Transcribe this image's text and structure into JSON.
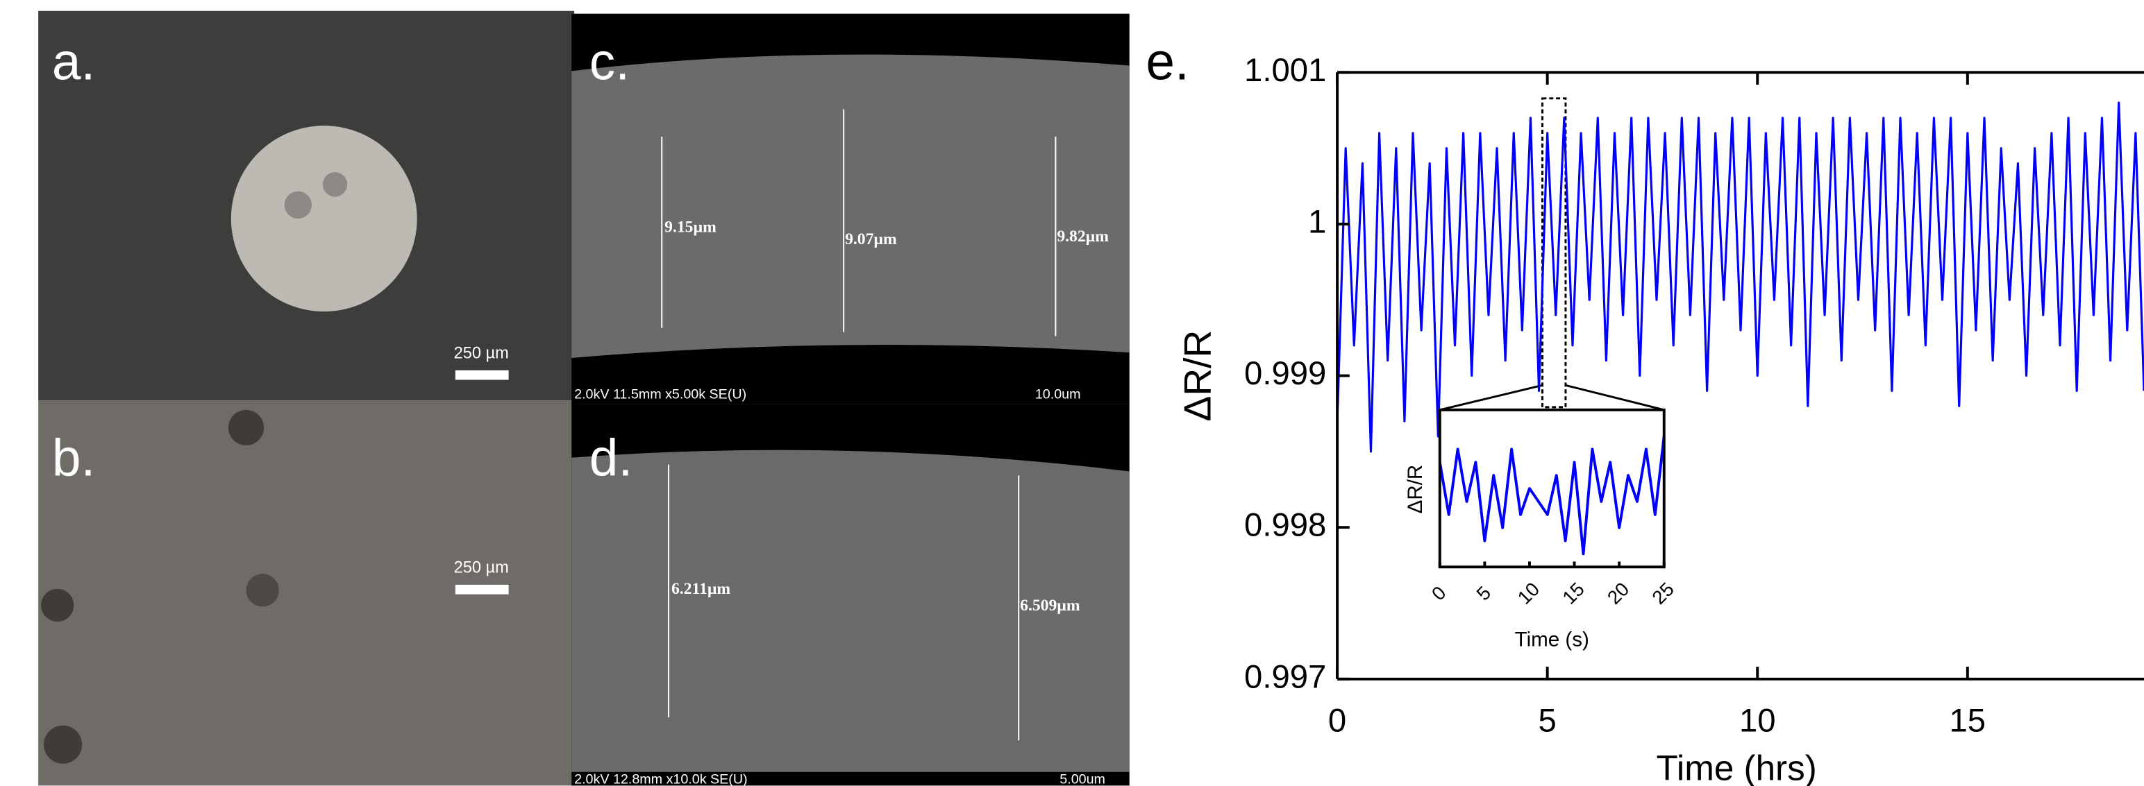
{
  "panels": {
    "a": {
      "label": "a.",
      "scale": "250 µm"
    },
    "b": {
      "label": "b.",
      "scale": "250 µm"
    },
    "c": {
      "label": "c.",
      "measures": [
        "9.15µm",
        "9.07µm",
        "9.82µm"
      ],
      "info": "2.0kV 11.5mm x5.00k SE(U)",
      "scale": "10.0um"
    },
    "d": {
      "label": "d.",
      "measures": [
        "6.211µm",
        "6.509µm"
      ],
      "info": "2.0kV 12.8mm x10.0k SE(U)",
      "scale": "5.00um"
    },
    "e": {
      "label": "e."
    }
  },
  "chart_data": [
    {
      "type": "line",
      "xlabel": "Time (hrs)",
      "ylabel": "ΔR/R",
      "xlim": [
        0,
        19.2
      ],
      "ylim": [
        0.997,
        1.001
      ],
      "xticks": [
        0,
        5,
        10,
        15
      ],
      "yticks": [
        0.997,
        0.998,
        0.999,
        1,
        1.001
      ],
      "x": [
        0,
        0.2,
        0.4,
        0.6,
        0.8,
        1,
        1.2,
        1.4,
        1.6,
        1.8,
        2,
        2.2,
        2.4,
        2.6,
        2.8,
        3,
        3.2,
        3.4,
        3.6,
        3.8,
        4,
        4.2,
        4.4,
        4.6,
        4.8,
        5,
        5.2,
        5.4,
        5.6,
        5.8,
        6,
        6.2,
        6.4,
        6.6,
        6.8,
        7,
        7.2,
        7.4,
        7.6,
        7.8,
        8,
        8.2,
        8.4,
        8.6,
        8.8,
        9,
        9.2,
        9.4,
        9.6,
        9.8,
        10,
        10.2,
        10.4,
        10.6,
        10.8,
        11,
        11.2,
        11.4,
        11.6,
        11.8,
        12,
        12.2,
        12.4,
        12.6,
        12.8,
        13,
        13.2,
        13.4,
        13.6,
        13.8,
        14,
        14.2,
        14.4,
        14.6,
        14.8,
        15,
        15.2,
        15.4,
        15.6,
        15.8,
        16,
        16.2,
        16.4,
        16.6,
        16.8,
        17,
        17.2,
        17.4,
        17.6,
        17.8,
        18,
        18.2,
        18.4,
        18.6,
        18.8,
        19,
        19.2
      ],
      "series": [
        {
          "color": "#0000ff",
          "values": [
            0.9987,
            1.0005,
            0.9992,
            1.0004,
            0.9985,
            1.0006,
            0.9991,
            1.0005,
            0.9987,
            1.0006,
            0.9993,
            1.0004,
            0.9986,
            1.0005,
            0.9992,
            1.0006,
            0.999,
            1.0006,
            0.9994,
            1.0005,
            0.9991,
            1.0006,
            0.9993,
            1.0007,
            0.9989,
            1.0006,
            0.9994,
            1.0007,
            0.9992,
            1.0006,
            0.9995,
            1.0007,
            0.9991,
            1.0006,
            0.9994,
            1.0007,
            0.999,
            1.0007,
            0.9995,
            1.0006,
            0.9992,
            1.0007,
            0.9994,
            1.0007,
            0.9989,
            1.0006,
            0.9995,
            1.0007,
            0.9993,
            1.0007,
            0.999,
            1.0006,
            0.9995,
            1.0007,
            0.9992,
            1.0007,
            0.9988,
            1.0006,
            0.9994,
            1.0007,
            0.9991,
            1.0007,
            0.9995,
            1.0006,
            0.9993,
            1.0007,
            0.9989,
            1.0007,
            0.9994,
            1.0006,
            0.9992,
            1.0007,
            0.9995,
            1.0007,
            0.9988,
            1.0006,
            0.9993,
            1.0007,
            0.9991,
            1.0005,
            0.9995,
            1.0004,
            0.999,
            1.0005,
            0.9994,
            1.0006,
            0.9992,
            1.0007,
            0.9989,
            1.0006,
            0.9994,
            1.0007,
            0.9991,
            1.0008,
            0.9993,
            1.0006,
            0.9989
          ]
        }
      ]
    },
    {
      "type": "line",
      "xlabel": "Time (s)",
      "ylabel": "ΔR/R",
      "xlim": [
        0,
        25
      ],
      "ylim": [
        0.9994,
        1.0006
      ],
      "xticks": [
        0,
        5,
        10,
        15,
        20,
        25
      ],
      "x": [
        0,
        1,
        2,
        3,
        4,
        5,
        6,
        7,
        8,
        9,
        10,
        11,
        12,
        13,
        14,
        15,
        16,
        17,
        18,
        19,
        20,
        21,
        22,
        23,
        24,
        25
      ],
      "series": [
        {
          "color": "#0000ff",
          "values": [
            1.0002,
            0.9998,
            1.0003,
            0.9999,
            1.0002,
            0.9996,
            1.0001,
            0.9997,
            1.0003,
            0.9998,
            1.0,
            0.9999,
            0.9998,
            1.0001,
            0.9996,
            1.0002,
            0.9995,
            1.0003,
            0.9999,
            1.0002,
            0.9997,
            1.0001,
            0.9999,
            1.0003,
            0.9998,
            1.0004
          ]
        }
      ]
    }
  ]
}
